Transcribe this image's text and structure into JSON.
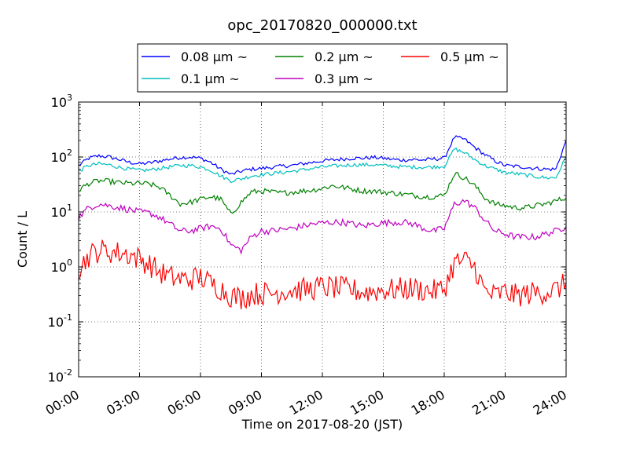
{
  "chart_data": {
    "type": "line",
    "title": "opc_20170820_000000.txt",
    "xlabel": "Time on 2017-08-20 (JST)",
    "ylabel": "Count / L",
    "x_range_hours": [
      0,
      24
    ],
    "x_ticks": [
      "00:00",
      "03:00",
      "06:00",
      "09:00",
      "12:00",
      "15:00",
      "18:00",
      "21:00",
      "24:00"
    ],
    "y_scale": "log",
    "ylim": [
      0.01,
      1000
    ],
    "y_ticks": [
      {
        "base": "10",
        "exp": "-2"
      },
      {
        "base": "10",
        "exp": "-1"
      },
      {
        "base": "10",
        "exp": "0"
      },
      {
        "base": "10",
        "exp": "1"
      },
      {
        "base": "10",
        "exp": "2"
      },
      {
        "base": "10",
        "exp": "3"
      }
    ],
    "grid": true,
    "legend_position": "top-center",
    "x": [
      0,
      0.5,
      1,
      1.5,
      2,
      2.5,
      3,
      3.5,
      4,
      4.5,
      5,
      5.5,
      6,
      6.5,
      7,
      7.5,
      8,
      8.5,
      9,
      9.5,
      10,
      10.5,
      11,
      11.5,
      12,
      12.5,
      13,
      13.5,
      14,
      14.5,
      15,
      15.5,
      16,
      16.5,
      17,
      17.5,
      18,
      18.5,
      19,
      19.5,
      20,
      20.5,
      21,
      21.5,
      22,
      22.5,
      23,
      23.5,
      24
    ],
    "series": [
      {
        "name": "0.08 μm ~",
        "color": "#0000ff",
        "values": [
          70,
          95,
          105,
          100,
          90,
          80,
          75,
          78,
          85,
          92,
          98,
          100,
          95,
          80,
          60,
          48,
          55,
          60,
          62,
          65,
          68,
          70,
          75,
          80,
          85,
          88,
          92,
          95,
          95,
          98,
          95,
          90,
          88,
          90,
          88,
          92,
          95,
          230,
          210,
          150,
          110,
          85,
          70,
          68,
          65,
          62,
          60,
          60,
          200
        ]
      },
      {
        "name": "0.1 μm ~",
        "color": "#00bfbf",
        "values": [
          55,
          70,
          75,
          72,
          65,
          60,
          57,
          58,
          62,
          66,
          70,
          70,
          66,
          58,
          45,
          37,
          40,
          45,
          48,
          50,
          52,
          55,
          58,
          62,
          66,
          68,
          70,
          72,
          72,
          72,
          70,
          68,
          66,
          66,
          65,
          66,
          68,
          140,
          120,
          90,
          70,
          60,
          52,
          50,
          47,
          44,
          42,
          42,
          100
        ]
      },
      {
        "name": "0.2 μm ~",
        "color": "#008000",
        "values": [
          25,
          33,
          37,
          36,
          34,
          33,
          33,
          32,
          28,
          20,
          14,
          15,
          17,
          19,
          17,
          9,
          15,
          23,
          24,
          23,
          22,
          23,
          24,
          25,
          27,
          30,
          28,
          26,
          24,
          24,
          23,
          22,
          21,
          20,
          19,
          19,
          20,
          50,
          42,
          30,
          18,
          14,
          13,
          12,
          12,
          13,
          14,
          16,
          18
        ]
      },
      {
        "name": "0.3 μm ~",
        "color": "#bf00bf",
        "values": [
          8,
          12,
          14,
          13,
          12,
          11,
          10,
          9.5,
          8,
          6,
          4.5,
          4.5,
          5,
          5.5,
          5,
          2.5,
          2,
          3.5,
          4.5,
          4.5,
          4.8,
          5,
          5.5,
          6,
          6.3,
          6.5,
          6.5,
          6,
          5.5,
          6,
          6.3,
          6.5,
          6.5,
          6,
          5,
          4.5,
          5,
          14,
          16,
          12,
          7,
          4.5,
          4,
          3.5,
          3.5,
          3.5,
          4,
          4.5,
          5.5
        ]
      },
      {
        "name": "0.5 μm ~",
        "color": "#ff0000",
        "values": [
          0.9,
          1.6,
          2.0,
          1.9,
          1.8,
          1.7,
          1.4,
          1.1,
          0.8,
          0.65,
          0.6,
          0.6,
          0.65,
          0.5,
          0.4,
          0.3,
          0.27,
          0.32,
          0.33,
          0.33,
          0.36,
          0.38,
          0.38,
          0.4,
          0.43,
          0.42,
          0.4,
          0.38,
          0.35,
          0.36,
          0.38,
          0.38,
          0.4,
          0.4,
          0.38,
          0.36,
          0.4,
          1.2,
          1.3,
          1.0,
          0.35,
          0.3,
          0.35,
          0.3,
          0.32,
          0.34,
          0.35,
          0.38,
          0.5
        ]
      }
    ]
  }
}
